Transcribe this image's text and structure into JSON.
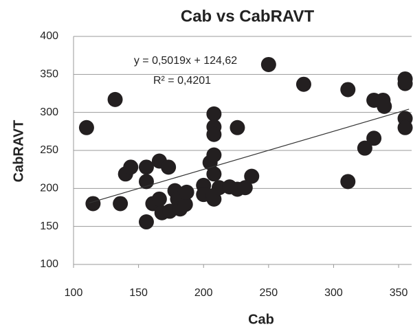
{
  "chart_data": {
    "type": "scatter",
    "title": "Cab vs CabRAVT",
    "x_label": "Cab",
    "y_label": "CabRAVT",
    "annotations": [
      "y = 0,5019x + 124,62",
      "R² = 0,4201"
    ],
    "x": [
      110,
      115,
      132,
      136,
      140,
      144,
      156,
      156,
      156,
      161,
      166,
      166,
      168,
      173,
      174,
      178,
      180,
      182,
      186,
      187,
      200,
      200,
      205,
      207,
      208,
      208,
      208,
      208,
      208,
      208,
      212,
      220,
      226,
      226,
      232,
      237,
      250,
      277,
      311,
      311,
      324,
      331,
      331,
      338,
      339,
      355,
      355,
      355,
      355
    ],
    "values": [
      280,
      180,
      317,
      180,
      219,
      228,
      228,
      209,
      156,
      180,
      236,
      186,
      168,
      228,
      170,
      197,
      186,
      173,
      179,
      195,
      204,
      192,
      234,
      190,
      298,
      281,
      271,
      244,
      219,
      186,
      201,
      202,
      280,
      199,
      201,
      216,
      363,
      337,
      330,
      209,
      253,
      266,
      316,
      316,
      308,
      344,
      338,
      292,
      280
    ],
    "color": "#231f20",
    "trendline": {
      "slope": 0.5019,
      "intercept": 124.62,
      "x_range": [
        112,
        358
      ],
      "color": "#333333"
    },
    "xlim": [
      100,
      360
    ],
    "xticks": [
      100,
      150,
      200,
      250,
      300,
      350
    ],
    "ylim": [
      100,
      400
    ],
    "yticks": [
      100,
      150,
      200,
      250,
      300,
      350,
      400
    ],
    "grid": true
  }
}
